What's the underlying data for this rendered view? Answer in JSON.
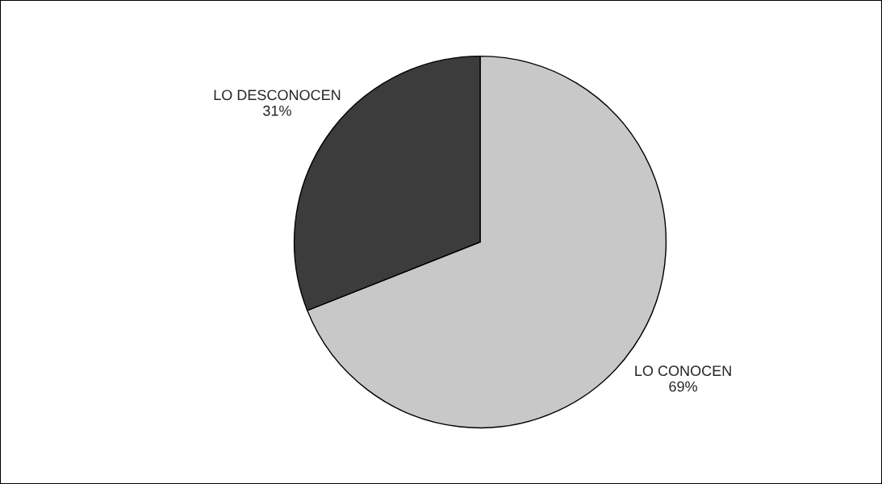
{
  "chart_data": {
    "type": "pie",
    "categories": [
      "LO CONOCEN",
      "LO DESCONOCEN"
    ],
    "values": [
      69,
      31
    ],
    "value_labels": [
      "69%",
      "31%"
    ],
    "colors": [
      "#c8c8c8",
      "#3c3c3c"
    ]
  }
}
